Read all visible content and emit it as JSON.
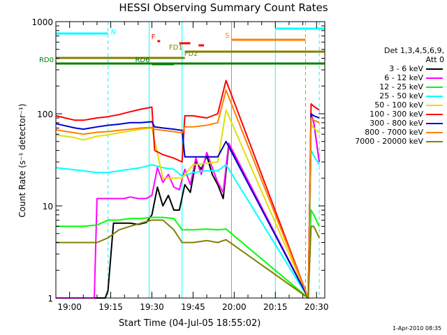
{
  "title": "HESSI Observing Summary Count Rates",
  "xlabel": "Start Time (04-Jul-05 18:55:02)",
  "ylabel": "Count Rate (s⁻¹ detector⁻¹)",
  "timestamp": "1-Apr-2010 08:35",
  "legend": {
    "header1": "Det 1,3,4,5,6,9,",
    "header2": "Att 0"
  },
  "colors": {
    "night": "#00ffff",
    "flare": "#ff0000",
    "saa": "#ff8000",
    "decimation": "#808000",
    "rd": "#008000"
  },
  "chart_data": {
    "type": "line",
    "title": "HESSI Observing Summary Count Rates",
    "xlabel": "Start Time (04-Jul-05 18:55:02)",
    "ylabel": "Count Rate (s⁻¹ detector⁻¹)",
    "y_scale": "log",
    "ylim": [
      1,
      1000
    ],
    "xlim": [
      "18:55",
      "20:33"
    ],
    "x_tick_labels": [
      "19:00",
      "19:15",
      "19:30",
      "19:45",
      "20:00",
      "20:15",
      "20:30"
    ],
    "y_tick_labels": [
      "1",
      "10",
      "100",
      "1000"
    ],
    "series": [
      {
        "name": "3 - 6 keV",
        "color": "#000000",
        "x": [
          "18:55",
          "19:07",
          "19:10",
          "19:12",
          "19:13",
          "19:14",
          "19:16",
          "19:19",
          "19:22",
          "19:25",
          "19:28",
          "19:30",
          "19:32",
          "19:34",
          "19:36",
          "19:38",
          "19:40",
          "19:42",
          "19:44",
          "19:46",
          "19:48",
          "19:50",
          "19:52",
          "19:54",
          "19:56",
          "19:58",
          "20:27",
          "20:28",
          "20:29",
          "20:31"
        ],
        "values": [
          1,
          1,
          1,
          1,
          1,
          1.2,
          6.5,
          6.5,
          6.5,
          6.3,
          6.6,
          8,
          16,
          10,
          13,
          9,
          9,
          17,
          14,
          30,
          25,
          35,
          22,
          17,
          12,
          45,
          1,
          100,
          80,
          30
        ]
      },
      {
        "name": "6 - 12 keV",
        "color": "#ff00ff",
        "x": [
          "18:55",
          "19:09",
          "19:10",
          "19:12",
          "19:14",
          "19:16",
          "19:18",
          "19:20",
          "19:22",
          "19:25",
          "19:28",
          "19:30",
          "19:32",
          "19:34",
          "19:36",
          "19:38",
          "19:40",
          "19:42",
          "19:44",
          "19:46",
          "19:48",
          "19:50",
          "19:52",
          "19:54",
          "19:56",
          "19:58",
          "20:27",
          "20:28",
          "20:29",
          "20:31"
        ],
        "values": [
          1,
          1,
          12,
          12,
          12,
          12,
          12,
          12,
          12.5,
          12,
          12,
          13,
          26,
          18,
          22,
          16,
          15,
          25,
          17,
          33,
          22,
          38,
          26,
          18,
          14,
          48,
          1,
          100,
          80,
          30
        ]
      },
      {
        "name": "12 - 25 keV",
        "color": "#00ff00",
        "x": [
          "18:55",
          "19:05",
          "19:10",
          "19:14",
          "19:18",
          "19:22",
          "19:26",
          "19:30",
          "19:34",
          "19:38",
          "19:41",
          "19:45",
          "19:50",
          "19:54",
          "19:57",
          "20:27",
          "20:28",
          "20:29",
          "20:31"
        ],
        "values": [
          6,
          6,
          6.2,
          7,
          7,
          7.3,
          7.3,
          7.5,
          7.5,
          7.3,
          5.5,
          5.5,
          5.6,
          5.5,
          5.6,
          1,
          9,
          8,
          6
        ]
      },
      {
        "name": "25 - 50 keV",
        "color": "#00ffff",
        "x": [
          "18:55",
          "19:05",
          "19:10",
          "19:14",
          "19:18",
          "19:22",
          "19:26",
          "19:30",
          "19:34",
          "19:38",
          "19:41",
          "19:45",
          "19:50",
          "19:54",
          "19:57",
          "20:27",
          "20:28",
          "20:29",
          "20:31"
        ],
        "values": [
          26,
          24,
          23,
          23,
          24,
          25,
          26,
          28,
          26,
          25,
          21,
          23,
          24,
          24,
          28,
          1,
          40,
          35,
          28
        ]
      },
      {
        "name": "50 - 100 keV",
        "color": "#e0e000",
        "x": [
          "18:55",
          "19:02",
          "19:05",
          "19:10",
          "19:14",
          "19:18",
          "19:22",
          "19:26",
          "19:30",
          "19:34",
          "19:38",
          "19:41",
          "19:45",
          "19:50",
          "19:54",
          "19:57",
          "20:27",
          "20:28",
          "20:29",
          "20:31"
        ],
        "values": [
          59,
          55,
          52,
          57,
          59,
          62,
          65,
          68,
          70,
          20,
          20,
          20,
          28,
          29,
          30,
          110,
          1,
          75,
          70,
          62
        ]
      },
      {
        "name": "100 - 300 keV",
        "color": "#ff0000",
        "x": [
          "18:55",
          "19:02",
          "19:05",
          "19:10",
          "19:14",
          "19:18",
          "19:22",
          "19:26",
          "19:30",
          "19:31",
          "19:34",
          "19:38",
          "19:41",
          "19:42",
          "19:45",
          "19:50",
          "19:54",
          "19:57",
          "20:27",
          "20:28",
          "20:29",
          "20:31"
        ],
        "values": [
          95,
          85,
          85,
          90,
          93,
          98,
          105,
          112,
          118,
          40,
          36,
          33,
          30,
          95,
          95,
          90,
          100,
          230,
          1,
          128,
          120,
          110
        ]
      },
      {
        "name": "300 - 800 keV",
        "color": "#0000cc",
        "x": [
          "18:55",
          "19:02",
          "19:05",
          "19:10",
          "19:14",
          "19:18",
          "19:22",
          "19:26",
          "19:30",
          "19:31",
          "19:34",
          "19:38",
          "19:41",
          "19:42",
          "19:45",
          "19:50",
          "19:54",
          "19:57",
          "20:27",
          "20:28",
          "20:29",
          "20:31"
        ],
        "values": [
          78,
          70,
          68,
          72,
          75,
          77,
          80,
          80,
          82,
          72,
          70,
          68,
          66,
          34,
          34,
          34,
          34,
          50,
          1,
          100,
          95,
          90
        ]
      },
      {
        "name": "800 - 7000 keV",
        "color": "#ff8000",
        "x": [
          "18:55",
          "19:02",
          "19:05",
          "19:10",
          "19:14",
          "19:18",
          "19:22",
          "19:26",
          "19:30",
          "19:31",
          "19:34",
          "19:38",
          "19:41",
          "19:42",
          "19:45",
          "19:50",
          "19:54",
          "19:57",
          "20:27",
          "20:28",
          "20:29",
          "20:31"
        ],
        "values": [
          67,
          62,
          60,
          63,
          64,
          66,
          68,
          70,
          71,
          68,
          66,
          64,
          62,
          72,
          72,
          75,
          80,
          180,
          1,
          90,
          85,
          80
        ]
      },
      {
        "name": "7000 - 20000 keV",
        "color": "#808000",
        "x": [
          "18:55",
          "19:05",
          "19:10",
          "19:14",
          "19:18",
          "19:22",
          "19:26",
          "19:30",
          "19:34",
          "19:38",
          "19:41",
          "19:45",
          "19:50",
          "19:54",
          "19:57",
          "20:27",
          "20:28",
          "20:29",
          "20:31"
        ],
        "values": [
          4,
          4,
          4,
          4.5,
          5.5,
          6,
          6.5,
          7,
          7,
          5.5,
          4,
          4,
          4.2,
          4,
          4.3,
          1,
          6,
          6,
          4.5
        ]
      }
    ],
    "annotations": [
      {
        "label": "N",
        "color": "#00ffff",
        "start": "18:55",
        "end": "19:14"
      },
      {
        "label": "",
        "color": "#00ffff",
        "start": "20:15",
        "end": "20:33"
      },
      {
        "label": "S",
        "color": "#ff8000",
        "start": "19:59",
        "end": "20:26"
      },
      {
        "label": "F",
        "color": "#ff0000",
        "start": "19:32",
        "end": "19:33"
      },
      {
        "label": "",
        "color": "#ff0000",
        "start": "19:40",
        "end": "19:44"
      },
      {
        "label": "",
        "color": "#ff0000",
        "start": "19:47",
        "end": "19:49"
      },
      {
        "label": "FD1",
        "color": "#808000",
        "start": "19:42",
        "end": "20:33"
      },
      {
        "label": "FD2",
        "color": "#808000",
        "start": "18:55",
        "end": "19:42"
      },
      {
        "label": "RD0",
        "color": "#008000",
        "start": "18:55",
        "end": "20:33"
      },
      {
        "label": "RD6",
        "color": "#008000",
        "start": "19:30",
        "end": "19:38"
      }
    ]
  }
}
